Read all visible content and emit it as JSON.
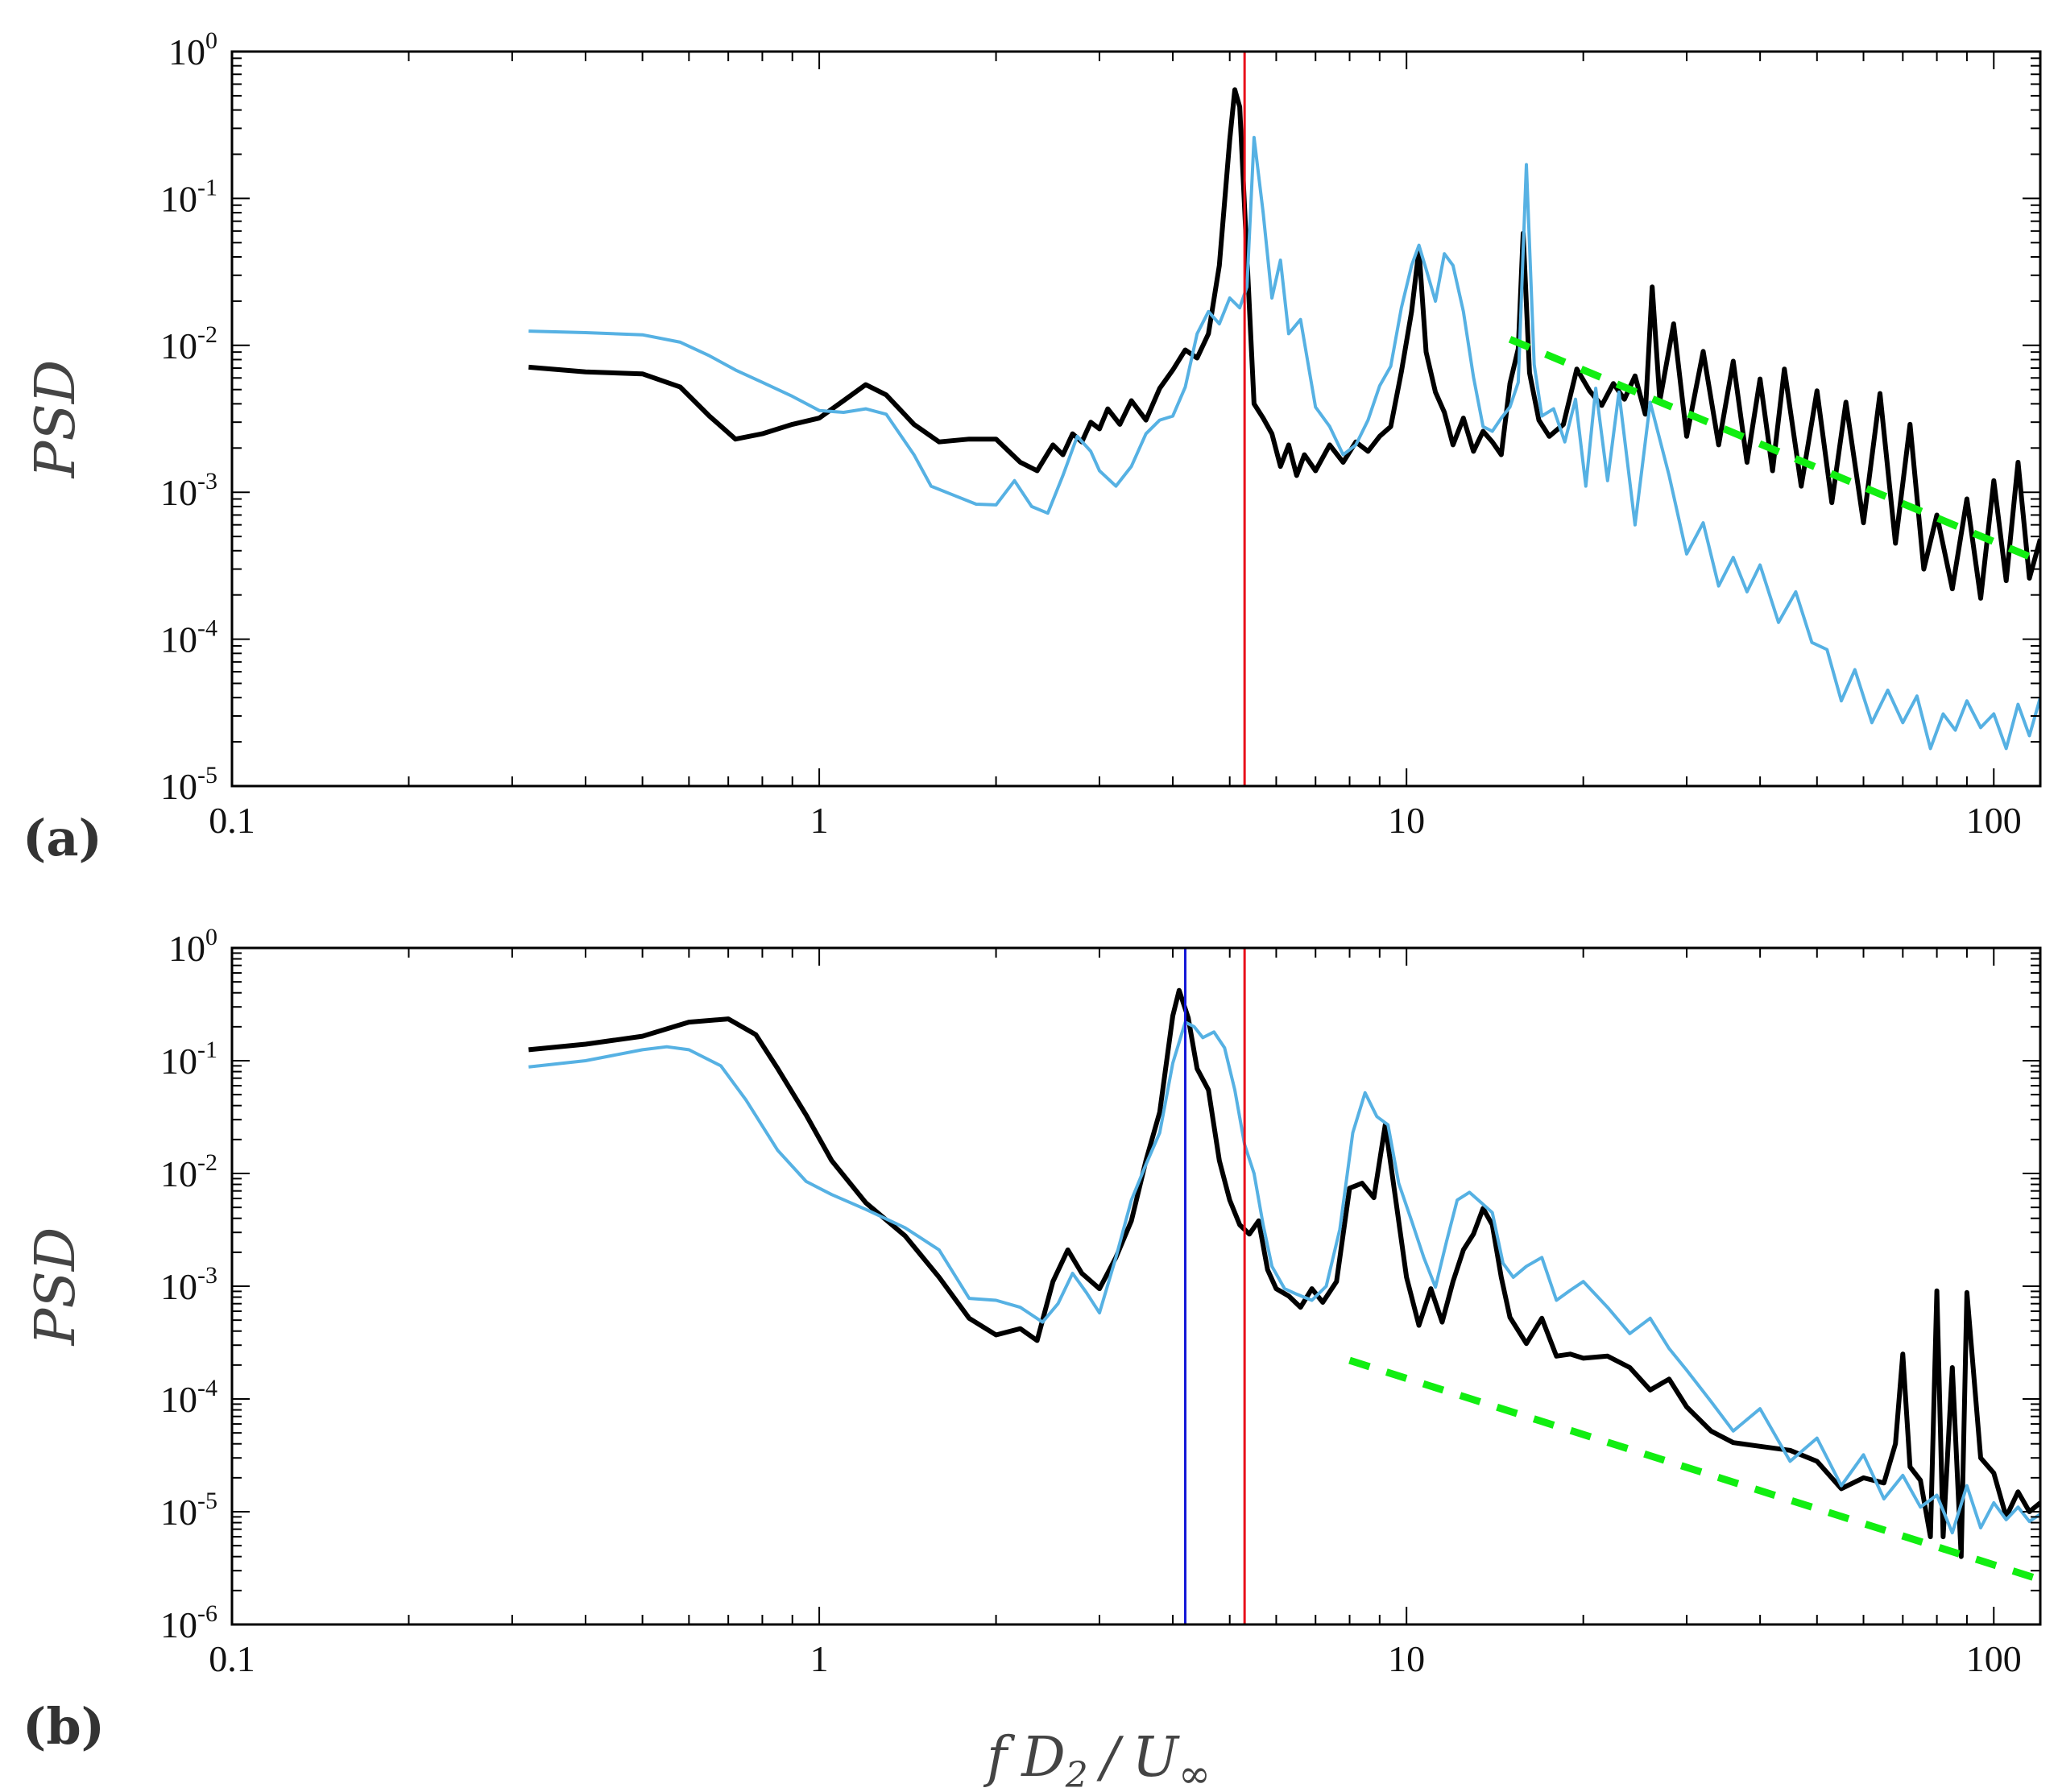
{
  "colors": {
    "black_series": "#000000",
    "blue_series": "#56b1e3",
    "green_fit": "#11ee11",
    "red_marker": "#e8101a",
    "blue_marker": "#1418d8"
  },
  "x_axis_label": "f D2 / U∞",
  "x_axis_label_parts": {
    "f": "f",
    "D": "D",
    "sub": "2",
    "slash": "/",
    "U": "U",
    "inf": "∞"
  },
  "chart_data": [
    {
      "type": "line",
      "panel": "(a)",
      "ylabel": "PSD",
      "xscale": "log",
      "yscale": "log",
      "xlim": [
        0.1,
        120
      ],
      "ylim": [
        1e-05,
        1
      ],
      "x_ticks": [
        {
          "value": 0.1,
          "label": "0.1"
        },
        {
          "value": 1,
          "label": "1"
        },
        {
          "value": 10,
          "label": "10"
        },
        {
          "value": 100,
          "label": "100"
        }
      ],
      "y_ticks": [
        {
          "value": 1,
          "base": "10",
          "exp": "0"
        },
        {
          "value": 0.1,
          "base": "10",
          "exp": "-1"
        },
        {
          "value": 0.01,
          "base": "10",
          "exp": "-2"
        },
        {
          "value": 0.001,
          "base": "10",
          "exp": "-3"
        },
        {
          "value": 0.0001,
          "base": "10",
          "exp": "-4"
        },
        {
          "value": 1e-05,
          "base": "10",
          "exp": "-5"
        }
      ],
      "vlines": [
        {
          "x": 5.3,
          "color": "#e8101a"
        }
      ],
      "fit_line": {
        "x": [
          15,
          120
        ],
        "y": [
          0.011,
          0.00034
        ],
        "color": "#11ee11"
      },
      "series": [
        {
          "name": "black",
          "color": "#000000",
          "width": 6,
          "x": [
            0.32,
            0.4,
            0.5,
            0.58,
            0.65,
            0.72,
            0.8,
            0.9,
            1.0,
            1.1,
            1.2,
            1.3,
            1.45,
            1.6,
            1.8,
            2.0,
            2.2,
            2.35,
            2.5,
            2.6,
            2.7,
            2.8,
            2.9,
            3.0,
            3.1,
            3.25,
            3.4,
            3.6,
            3.8,
            4.0,
            4.2,
            4.4,
            4.6,
            4.8,
            5.0,
            5.1,
            5.2,
            5.35,
            5.5,
            5.7,
            5.9,
            6.1,
            6.3,
            6.5,
            6.7,
            7.0,
            7.4,
            7.8,
            8.2,
            8.6,
            9.0,
            9.4,
            9.8,
            10.2,
            10.5,
            10.8,
            11.2,
            11.6,
            12.0,
            12.5,
            13.0,
            13.5,
            14.0,
            14.5,
            15.0,
            15.5,
            15.8,
            16.2,
            16.8,
            17.5,
            18.5,
            19.5,
            20.5,
            21.5,
            22.5,
            23.5,
            24.5,
            25.5,
            26.2,
            27.0,
            28.5,
            30.0,
            32.0,
            34.0,
            36.0,
            38.0,
            40.0,
            42.0,
            44.0,
            47.0,
            50.0,
            53.0,
            56.0,
            60.0,
            64.0,
            68.0,
            72.0,
            76.0,
            80.0,
            85.0,
            90.0,
            95.0,
            100.0,
            105.0,
            110.0,
            115.0,
            120.0
          ],
          "y": [
            0.0071,
            0.0066,
            0.0064,
            0.0052,
            0.0033,
            0.0023,
            0.0025,
            0.0029,
            0.0032,
            0.0042,
            0.0054,
            0.0046,
            0.0029,
            0.0022,
            0.0023,
            0.0023,
            0.0016,
            0.0014,
            0.0021,
            0.0018,
            0.0025,
            0.0022,
            0.003,
            0.0027,
            0.0037,
            0.0029,
            0.0042,
            0.0031,
            0.0051,
            0.0068,
            0.0093,
            0.0082,
            0.012,
            0.035,
            0.25,
            0.55,
            0.42,
            0.04,
            0.004,
            0.0032,
            0.0025,
            0.0015,
            0.0021,
            0.0013,
            0.0018,
            0.0014,
            0.0021,
            0.0016,
            0.0022,
            0.0019,
            0.0024,
            0.0028,
            0.0066,
            0.017,
            0.045,
            0.009,
            0.0048,
            0.0035,
            0.0021,
            0.0032,
            0.0019,
            0.0026,
            0.0022,
            0.0018,
            0.0055,
            0.0095,
            0.058,
            0.0065,
            0.0031,
            0.0024,
            0.0029,
            0.0069,
            0.0049,
            0.0039,
            0.0055,
            0.0043,
            0.0062,
            0.0034,
            0.025,
            0.0042,
            0.014,
            0.0024,
            0.0091,
            0.0021,
            0.0078,
            0.0016,
            0.0059,
            0.0014,
            0.0069,
            0.0011,
            0.0049,
            0.00085,
            0.0041,
            0.00062,
            0.0047,
            0.00045,
            0.0029,
            0.0003,
            0.0007,
            0.00022,
            0.0009,
            0.00019,
            0.0012,
            0.00025,
            0.0016,
            0.00026,
            0.00048
          ]
        },
        {
          "name": "blue",
          "color": "#56b1e3",
          "width": 4,
          "x": [
            0.32,
            0.4,
            0.5,
            0.58,
            0.65,
            0.72,
            0.8,
            0.9,
            1.0,
            1.1,
            1.2,
            1.3,
            1.45,
            1.55,
            1.7,
            1.85,
            2.0,
            2.15,
            2.3,
            2.45,
            2.6,
            2.75,
            2.9,
            3.0,
            3.2,
            3.4,
            3.6,
            3.8,
            4.0,
            4.2,
            4.4,
            4.6,
            4.8,
            5.0,
            5.2,
            5.35,
            5.5,
            5.7,
            5.9,
            6.1,
            6.3,
            6.6,
            7.0,
            7.4,
            7.8,
            8.2,
            8.6,
            9.0,
            9.4,
            9.8,
            10.2,
            10.5,
            10.8,
            11.2,
            11.6,
            12.0,
            12.5,
            13.0,
            13.5,
            14.0,
            14.5,
            15.0,
            15.5,
            16.0,
            16.5,
            17.0,
            17.8,
            18.6,
            19.4,
            20.2,
            21.0,
            22.0,
            23.0,
            24.5,
            26.0,
            28.0,
            30.0,
            32.0,
            34.0,
            36.0,
            38.0,
            40.0,
            43.0,
            46.0,
            49.0,
            52.0,
            55.0,
            58.0,
            62.0,
            66.0,
            70.0,
            74.0,
            78.0,
            82.0,
            86.0,
            90.0,
            95.0,
            100.0,
            105.0,
            110.0,
            115.0,
            120.0
          ],
          "y": [
            0.0125,
            0.0122,
            0.0118,
            0.0105,
            0.0085,
            0.0068,
            0.0056,
            0.0045,
            0.0036,
            0.0035,
            0.0037,
            0.0034,
            0.0018,
            0.0011,
            0.00095,
            0.00083,
            0.00082,
            0.0012,
            0.0008,
            0.00072,
            0.0013,
            0.0024,
            0.0019,
            0.0014,
            0.0011,
            0.0015,
            0.0025,
            0.0031,
            0.0033,
            0.0052,
            0.012,
            0.017,
            0.014,
            0.021,
            0.018,
            0.025,
            0.26,
            0.08,
            0.021,
            0.038,
            0.012,
            0.015,
            0.0038,
            0.0028,
            0.0018,
            0.0021,
            0.0031,
            0.0053,
            0.0072,
            0.018,
            0.035,
            0.048,
            0.033,
            0.02,
            0.042,
            0.035,
            0.017,
            0.0061,
            0.0028,
            0.0026,
            0.0032,
            0.0038,
            0.0056,
            0.17,
            0.0074,
            0.0033,
            0.0037,
            0.0022,
            0.0043,
            0.0011,
            0.0051,
            0.0012,
            0.0048,
            0.0006,
            0.0041,
            0.0013,
            0.00038,
            0.00062,
            0.00023,
            0.00036,
            0.00021,
            0.00032,
            0.00013,
            0.00021,
            9.5e-05,
            8.5e-05,
            3.8e-05,
            6.2e-05,
            2.7e-05,
            4.5e-05,
            2.7e-05,
            4.1e-05,
            1.8e-05,
            3.1e-05,
            2.4e-05,
            3.8e-05,
            2.5e-05,
            3.1e-05,
            1.8e-05,
            3.6e-05,
            2.2e-05,
            4e-05
          ]
        }
      ]
    },
    {
      "type": "line",
      "panel": "(b)",
      "ylabel": "PSD",
      "xscale": "log",
      "yscale": "log",
      "xlim": [
        0.1,
        120
      ],
      "ylim": [
        1e-06,
        1
      ],
      "x_ticks": [
        {
          "value": 0.1,
          "label": "0.1"
        },
        {
          "value": 1,
          "label": "1"
        },
        {
          "value": 10,
          "label": "10"
        },
        {
          "value": 100,
          "label": "100"
        }
      ],
      "y_ticks": [
        {
          "value": 1,
          "base": "10",
          "exp": "0"
        },
        {
          "value": 0.1,
          "base": "10",
          "exp": "-1"
        },
        {
          "value": 0.01,
          "base": "10",
          "exp": "-2"
        },
        {
          "value": 0.001,
          "base": "10",
          "exp": "-3"
        },
        {
          "value": 0.0001,
          "base": "10",
          "exp": "-4"
        },
        {
          "value": 1e-05,
          "base": "10",
          "exp": "-5"
        },
        {
          "value": 1e-06,
          "base": "10",
          "exp": "-6"
        }
      ],
      "vlines": [
        {
          "x": 4.2,
          "color": "#1418d8"
        },
        {
          "x": 5.3,
          "color": "#e8101a"
        }
      ],
      "fit_line": {
        "x": [
          8,
          120
        ],
        "y": [
          0.00022,
          2.5e-06
        ],
        "color": "#11ee11"
      },
      "series": [
        {
          "name": "black",
          "color": "#000000",
          "width": 6,
          "x": [
            0.32,
            0.4,
            0.5,
            0.6,
            0.7,
            0.78,
            0.85,
            0.95,
            1.05,
            1.2,
            1.4,
            1.6,
            1.8,
            2.0,
            2.2,
            2.35,
            2.5,
            2.65,
            2.8,
            3.0,
            3.2,
            3.4,
            3.6,
            3.8,
            4.0,
            4.1,
            4.25,
            4.4,
            4.6,
            4.8,
            5.0,
            5.2,
            5.4,
            5.6,
            5.8,
            6.0,
            6.3,
            6.6,
            6.9,
            7.2,
            7.6,
            8.0,
            8.4,
            8.8,
            9.2,
            9.6,
            10.0,
            10.5,
            11.0,
            11.5,
            12.0,
            12.5,
            13.0,
            13.5,
            14.0,
            14.5,
            15.0,
            16.0,
            17.0,
            18.0,
            19.0,
            20.0,
            22.0,
            24.0,
            26.0,
            28.0,
            30.0,
            33.0,
            36.0,
            40.0,
            45.0,
            50.0,
            55.0,
            60.0,
            65.0,
            68.0,
            70.0,
            72.0,
            75.0,
            78.0,
            80.0,
            82.0,
            85.0,
            88.0,
            90.0,
            95.0,
            100.0,
            105.0,
            110.0,
            115.0,
            120.0
          ],
          "y": [
            0.125,
            0.14,
            0.165,
            0.22,
            0.235,
            0.17,
            0.085,
            0.033,
            0.013,
            0.0055,
            0.0028,
            0.0012,
            0.00052,
            0.00037,
            0.00042,
            0.00033,
            0.0011,
            0.0021,
            0.0013,
            0.00095,
            0.0018,
            0.0038,
            0.013,
            0.035,
            0.25,
            0.42,
            0.24,
            0.085,
            0.055,
            0.013,
            0.0058,
            0.0035,
            0.0029,
            0.0038,
            0.0014,
            0.00095,
            0.00082,
            0.00065,
            0.00095,
            0.00072,
            0.0011,
            0.0074,
            0.0082,
            0.0061,
            0.027,
            0.0055,
            0.0012,
            0.00045,
            0.00095,
            0.00048,
            0.0011,
            0.0021,
            0.0029,
            0.0049,
            0.0035,
            0.0012,
            0.00053,
            0.00031,
            0.00052,
            0.00024,
            0.00025,
            0.00023,
            0.00024,
            0.00019,
            0.00012,
            0.00015,
            8.5e-05,
            5.2e-05,
            4.1e-05,
            3.8e-05,
            3.5e-05,
            2.8e-05,
            1.6e-05,
            2e-05,
            1.8e-05,
            4e-05,
            0.00025,
            2.5e-05,
            1.9e-05,
            6e-06,
            0.00091,
            6e-06,
            0.00019,
            4e-06,
            0.00088,
            3e-05,
            2.2e-05,
            9e-06,
            1.5e-05,
            1e-05,
            1.2e-05
          ]
        },
        {
          "name": "blue",
          "color": "#56b1e3",
          "width": 4,
          "x": [
            0.32,
            0.4,
            0.5,
            0.55,
            0.6,
            0.68,
            0.75,
            0.85,
            0.95,
            1.05,
            1.2,
            1.4,
            1.6,
            1.8,
            2.0,
            2.2,
            2.4,
            2.55,
            2.7,
            2.85,
            3.0,
            3.2,
            3.4,
            3.6,
            3.8,
            4.0,
            4.2,
            4.35,
            4.5,
            4.7,
            4.9,
            5.1,
            5.3,
            5.5,
            5.7,
            5.9,
            6.2,
            6.5,
            6.9,
            7.3,
            7.7,
            8.1,
            8.5,
            8.9,
            9.3,
            9.7,
            10.2,
            10.7,
            11.2,
            11.7,
            12.2,
            12.8,
            13.4,
            14.0,
            14.6,
            15.2,
            16.0,
            17.0,
            18.0,
            19.0,
            20.0,
            22.0,
            24.0,
            26.0,
            28.0,
            30.0,
            33.0,
            36.0,
            40.0,
            45.0,
            50.0,
            55.0,
            60.0,
            65.0,
            70.0,
            75.0,
            80.0,
            85.0,
            90.0,
            95.0,
            100.0,
            105.0,
            110.0,
            115.0,
            120.0
          ],
          "y": [
            0.088,
            0.1,
            0.125,
            0.133,
            0.125,
            0.09,
            0.045,
            0.016,
            0.0085,
            0.0065,
            0.0048,
            0.0033,
            0.0021,
            0.00078,
            0.00075,
            0.00065,
            0.00048,
            0.0007,
            0.0013,
            0.00088,
            0.00058,
            0.0018,
            0.0058,
            0.012,
            0.023,
            0.095,
            0.22,
            0.2,
            0.16,
            0.18,
            0.13,
            0.055,
            0.018,
            0.01,
            0.0035,
            0.0015,
            0.00095,
            0.00085,
            0.00075,
            0.001,
            0.0032,
            0.023,
            0.052,
            0.032,
            0.027,
            0.0082,
            0.0038,
            0.0018,
            0.00098,
            0.0025,
            0.0058,
            0.0068,
            0.0055,
            0.0045,
            0.0016,
            0.0012,
            0.0015,
            0.0018,
            0.00075,
            0.00092,
            0.0011,
            0.00065,
            0.00038,
            0.00052,
            0.00028,
            0.00018,
            9.5e-05,
            5.2e-05,
            8.2e-05,
            2.8e-05,
            4.5e-05,
            1.7e-05,
            3.2e-05,
            1.3e-05,
            2.1e-05,
            1.1e-05,
            1.4e-05,
            6.5e-06,
            1.7e-05,
            7.2e-06,
            1.2e-05,
            8.5e-06,
            1.1e-05,
            8.2e-06,
            9.5e-06
          ]
        }
      ]
    }
  ]
}
